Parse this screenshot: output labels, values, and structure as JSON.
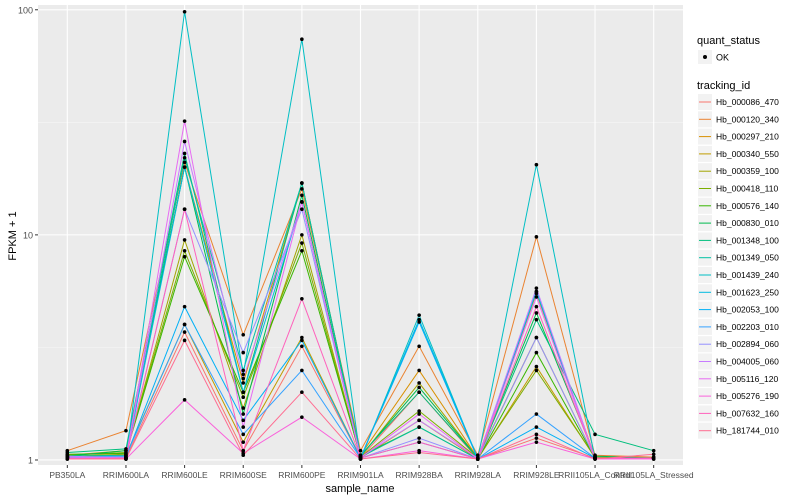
{
  "chart_data": {
    "type": "line",
    "title": "",
    "xlabel": "sample_name",
    "ylabel": "FPKM + 1",
    "y_scale": "log10",
    "ylim": [
      0.95,
      105
    ],
    "y_ticks": [
      1,
      10,
      100
    ],
    "y_tick_labels": [
      "1",
      "10",
      "100"
    ],
    "grid": true,
    "categories": [
      "PB350LA",
      "RRIM600LA",
      "RRIM600LE",
      "RRIM600SE",
      "RRIM600PE",
      "RRIM901LA",
      "RRIM928BA",
      "RRIM928LA",
      "RRIM928LE",
      "RRII105LA_Control",
      "RRII105LA_Stressed"
    ],
    "legend_placement": "right",
    "legend": {
      "shape_title": "quant_status",
      "shape_entries": [
        "OK"
      ],
      "color_title": "tracking_id"
    },
    "series": [
      {
        "name": "Hb_000086_470",
        "color": "#F8766D",
        "values": [
          1.02,
          1.02,
          3.7,
          1.1,
          3.2,
          1.02,
          2.0,
          1.01,
          1.25,
          1.02,
          1.02
        ]
      },
      {
        "name": "Hb_000120_340",
        "color": "#EA8331",
        "values": [
          1.1,
          1.35,
          21.0,
          3.6,
          16.0,
          1.1,
          3.2,
          1.05,
          9.8,
          1.05,
          1.03
        ]
      },
      {
        "name": "Hb_000297_210",
        "color": "#D89000",
        "values": [
          1.05,
          1.1,
          20.0,
          2.2,
          17.0,
          1.05,
          2.5,
          1.02,
          5.5,
          1.03,
          1.02
        ]
      },
      {
        "name": "Hb_000340_550",
        "color": "#C09B00",
        "values": [
          1.03,
          1.05,
          4.0,
          1.2,
          3.5,
          1.02,
          1.5,
          1.01,
          2.6,
          1.02,
          1.02
        ]
      },
      {
        "name": "Hb_000359_100",
        "color": "#A3A500",
        "values": [
          1.04,
          1.06,
          9.5,
          1.7,
          10.0,
          1.03,
          2.2,
          1.02,
          3.5,
          1.02,
          1.02
        ]
      },
      {
        "name": "Hb_000418_110",
        "color": "#7CAE00",
        "values": [
          1.05,
          1.08,
          8.5,
          1.9,
          9.2,
          1.03,
          1.65,
          1.02,
          2.5,
          1.03,
          1.02
        ]
      },
      {
        "name": "Hb_000576_140",
        "color": "#39B600",
        "values": [
          1.06,
          1.07,
          8.0,
          2.0,
          8.5,
          1.04,
          1.4,
          1.01,
          3.0,
          1.02,
          1.02
        ]
      },
      {
        "name": "Hb_000830_010",
        "color": "#00BB4E",
        "values": [
          1.04,
          1.1,
          20.0,
          1.6,
          15.0,
          1.04,
          2.1,
          1.02,
          4.5,
          1.04,
          1.02
        ]
      },
      {
        "name": "Hb_001348_100",
        "color": "#00BF7D",
        "values": [
          1.08,
          1.12,
          23.0,
          2.0,
          17.0,
          1.05,
          2.0,
          1.02,
          4.2,
          1.3,
          1.1
        ]
      },
      {
        "name": "Hb_001349_050",
        "color": "#00C1A3",
        "values": [
          1.04,
          1.05,
          22.0,
          2.5,
          17.0,
          1.03,
          1.4,
          1.01,
          5.6,
          1.02,
          1.02
        ]
      },
      {
        "name": "Hb_001439_240",
        "color": "#00BFC4",
        "values": [
          1.02,
          1.01,
          98.0,
          2.4,
          74.0,
          1.01,
          4.4,
          1.01,
          20.5,
          1.01,
          1.01
        ]
      },
      {
        "name": "Hb_001623_250",
        "color": "#00BAE0",
        "values": [
          1.03,
          1.02,
          20.0,
          2.0,
          14.0,
          1.02,
          4.2,
          1.02,
          5.6,
          1.02,
          1.02
        ]
      },
      {
        "name": "Hb_002053_100",
        "color": "#00B0F6",
        "values": [
          1.02,
          1.03,
          4.8,
          1.5,
          3.4,
          1.02,
          4.1,
          1.01,
          1.4,
          1.02,
          1.02
        ]
      },
      {
        "name": "Hb_002203_010",
        "color": "#35A2FF",
        "values": [
          1.03,
          1.04,
          4.0,
          1.3,
          2.5,
          1.02,
          1.2,
          1.01,
          1.6,
          1.02,
          1.02
        ]
      },
      {
        "name": "Hb_002894_060",
        "color": "#9590FF",
        "values": [
          1.03,
          1.03,
          13.0,
          3.0,
          13.0,
          1.02,
          1.25,
          1.01,
          3.5,
          1.02,
          1.02
        ]
      },
      {
        "name": "Hb_004005_060",
        "color": "#C77CFF",
        "values": [
          1.04,
          1.02,
          26.0,
          2.3,
          14.0,
          1.03,
          1.5,
          1.02,
          5.8,
          1.02,
          1.02
        ]
      },
      {
        "name": "Hb_005116_120",
        "color": "#E76BF3",
        "values": [
          1.02,
          1.02,
          32.0,
          1.4,
          14.0,
          1.02,
          1.6,
          1.01,
          5.3,
          1.02,
          1.02
        ]
      },
      {
        "name": "Hb_005276_190",
        "color": "#FA62DB",
        "values": [
          1.02,
          1.01,
          1.85,
          1.07,
          1.55,
          1.01,
          1.1,
          1.01,
          1.2,
          1.01,
          1.01
        ]
      },
      {
        "name": "Hb_007632_160",
        "color": "#FF62BC",
        "values": [
          1.01,
          1.02,
          13.0,
          1.1,
          5.2,
          1.02,
          1.2,
          1.01,
          4.8,
          1.02,
          1.02
        ]
      },
      {
        "name": "Hb_181744_010",
        "color": "#FF6C91",
        "values": [
          1.01,
          1.01,
          3.4,
          1.05,
          2.0,
          1.01,
          1.08,
          1.01,
          1.3,
          1.01,
          1.06
        ]
      }
    ]
  }
}
